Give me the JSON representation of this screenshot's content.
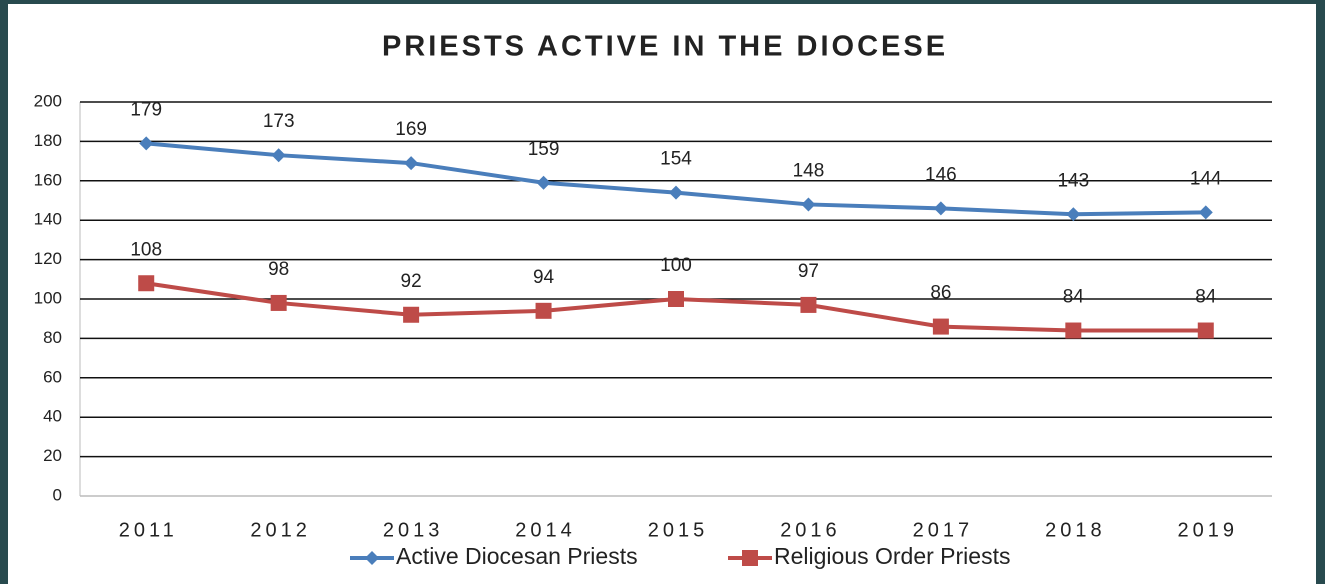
{
  "chart_data": {
    "type": "line",
    "title": "PRIESTS ACTIVE IN THE DIOCESE",
    "categories": [
      "2011",
      "2012",
      "2013",
      "2014",
      "2015",
      "2016",
      "2017",
      "2018",
      "2019"
    ],
    "series": [
      {
        "name": "Active Diocesan Priests",
        "color": "#4a7ebb",
        "marker": "diamond",
        "values": [
          179,
          173,
          169,
          159,
          154,
          148,
          146,
          143,
          144
        ]
      },
      {
        "name": "Religious Order Priests",
        "color": "#be4b48",
        "marker": "square",
        "values": [
          108,
          98,
          92,
          94,
          100,
          97,
          86,
          84,
          84
        ]
      }
    ],
    "ylim": [
      0,
      200
    ],
    "yticks": [
      0,
      20,
      40,
      60,
      80,
      100,
      120,
      140,
      160,
      180,
      200
    ],
    "grid": true,
    "legend": "bottom"
  }
}
